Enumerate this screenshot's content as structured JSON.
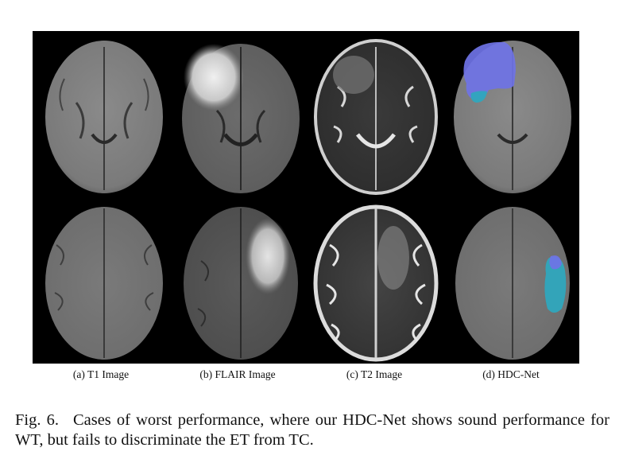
{
  "figure": {
    "subfigures": [
      {
        "label": "(a) T1 Image"
      },
      {
        "label": "(b) FLAIR Image"
      },
      {
        "label": "(c) T2 Image"
      },
      {
        "label": "(d) HDC-Net"
      }
    ],
    "caption_label": "Fig. 6.",
    "caption_text": "Cases of worst performance, where our HDC-Net shows sound performance for WT, but fails to discriminate the ET from TC."
  },
  "colors": {
    "background": "#000000",
    "segmentation_wt": "#6f73e6",
    "segmentation_tc": "#2fa7bd"
  }
}
